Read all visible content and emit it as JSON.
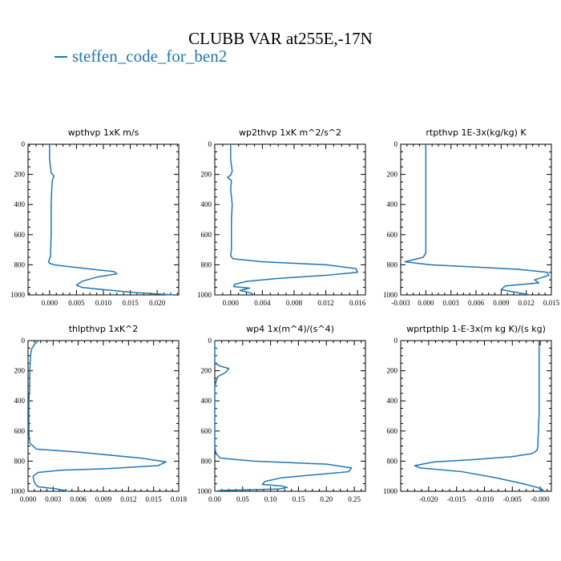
{
  "figure": {
    "title": "CLUBB VAR at255E,-17N",
    "legend": [
      {
        "name": "steffen_code_for_ben2",
        "color": "#1f77b4"
      }
    ]
  },
  "chart_data": [
    {
      "type": "line",
      "title": "wpthvp   1xK m/s",
      "xlim": [
        -0.004,
        0.024
      ],
      "ylim": [
        1000,
        0
      ],
      "xticks": [
        0.0,
        0.005,
        0.01,
        0.015,
        0.02
      ],
      "xtick_labels": [
        "0.000",
        "0.005",
        "0.010",
        "0.015",
        "0.020"
      ],
      "yticks": [
        0,
        200,
        400,
        600,
        800,
        1000
      ],
      "ytick_labels": [
        "0",
        "200",
        "400",
        "600",
        "800",
        "1000"
      ],
      "series": [
        {
          "color": "#1f77b4",
          "x": [
            0.0,
            0.0,
            0.0002,
            0.0003,
            0.0008,
            0.0005,
            0.0004,
            0.0003,
            0.0003,
            0.0003,
            0.0002,
            0.0002,
            -0.0002,
            0.0,
            0.0008,
            0.003,
            0.008,
            0.012,
            0.0125,
            0.009,
            0.006,
            0.005,
            0.006,
            0.01,
            0.016,
            0.023
          ],
          "y": [
            0,
            100,
            160,
            190,
            210,
            240,
            300,
            400,
            500,
            600,
            700,
            740,
            780,
            790,
            800,
            810,
            830,
            845,
            860,
            880,
            910,
            935,
            950,
            965,
            985,
            1000
          ]
        }
      ]
    },
    {
      "type": "line",
      "title": "wp2thvp   1xK m^2/s^2",
      "xlim": [
        -0.002,
        0.017
      ],
      "ylim": [
        1000,
        0
      ],
      "xticks": [
        0.0,
        0.004,
        0.008,
        0.012,
        0.016
      ],
      "xtick_labels": [
        "0.000",
        "0.004",
        "0.008",
        "0.012",
        "0.016"
      ],
      "yticks": [
        0,
        200,
        400,
        600,
        800,
        1000
      ],
      "ytick_labels": [
        "0",
        "200",
        "400",
        "600",
        "800",
        "1000"
      ],
      "series": [
        {
          "color": "#1f77b4",
          "x": [
            0.0,
            0.0,
            0.0002,
            0.0,
            -0.0004,
            0.0001,
            0.0,
            0.0002,
            0.0001,
            0.0001,
            0.0001,
            0.0,
            0.0003,
            0.004,
            0.012,
            0.0158,
            0.016,
            0.012,
            0.006,
            0.002,
            0.0005,
            0.0004,
            0.0024,
            0.0012,
            0.0024,
            0.003
          ],
          "y": [
            0,
            100,
            180,
            205,
            220,
            240,
            300,
            400,
            500,
            600,
            700,
            740,
            760,
            780,
            800,
            825,
            850,
            870,
            890,
            910,
            930,
            945,
            955,
            970,
            985,
            1000
          ]
        }
      ]
    },
    {
      "type": "line",
      "title": "rtpthvp   1E-3x(kg/kg) K",
      "xlim": [
        -0.003,
        0.015
      ],
      "ylim": [
        1000,
        0
      ],
      "xticks": [
        -0.003,
        0.0,
        0.003,
        0.006,
        0.009,
        0.012,
        0.015
      ],
      "xtick_labels": [
        "-0.003",
        "0.000",
        "0.003",
        "0.006",
        "0.009",
        "0.012",
        "0.015"
      ],
      "yticks": [
        0,
        200,
        400,
        600,
        800,
        1000
      ],
      "ytick_labels": [
        "0",
        "200",
        "400",
        "600",
        "800",
        "1000"
      ],
      "series": [
        {
          "color": "#1f77b4",
          "x": [
            0.0,
            0.0,
            0.0,
            0.0,
            0.0,
            0.0,
            -0.0003,
            -0.0025,
            0.0005,
            0.006,
            0.011,
            0.0145,
            0.0147,
            0.013,
            0.0135,
            0.0095,
            0.009,
            0.0125
          ],
          "y": [
            0,
            200,
            400,
            600,
            700,
            720,
            750,
            780,
            800,
            815,
            830,
            850,
            870,
            900,
            920,
            940,
            965,
            1000
          ]
        }
      ]
    },
    {
      "type": "line",
      "title": "thlpthvp   1xK^2",
      "xlim": [
        0.0,
        0.018
      ],
      "ylim": [
        1000,
        0
      ],
      "xticks": [
        0.0,
        0.003,
        0.006,
        0.009,
        0.012,
        0.015,
        0.018
      ],
      "xtick_labels": [
        "0.000",
        "0.003",
        "0.006",
        "0.009",
        "0.012",
        "0.015",
        "0.018"
      ],
      "yticks": [
        0,
        200,
        400,
        600,
        800,
        1000
      ],
      "ytick_labels": [
        "0",
        "200",
        "400",
        "600",
        "800",
        "1000"
      ],
      "series": [
        {
          "color": "#1f77b4",
          "x": [
            0.0012,
            0.0007,
            0.0004,
            0.0003,
            0.0002,
            0.0002,
            0.0001,
            0.0001,
            0.0001,
            0.0002,
            0.001,
            0.006,
            0.0135,
            0.0165,
            0.0155,
            0.0095,
            0.004,
            0.0012,
            0.0006,
            0.0007,
            0.0009,
            0.0012,
            0.0035,
            0.0048
          ],
          "y": [
            0,
            30,
            60,
            100,
            200,
            300,
            400,
            500,
            600,
            680,
            720,
            740,
            780,
            805,
            830,
            850,
            860,
            875,
            900,
            930,
            955,
            970,
            985,
            1000
          ]
        }
      ]
    },
    {
      "type": "line",
      "title": "wp4   1x(m^4)/(s^4)",
      "xlim": [
        0.0,
        0.27
      ],
      "ylim": [
        1000,
        0
      ],
      "xticks": [
        0.0,
        0.05,
        0.1,
        0.15,
        0.2,
        0.25
      ],
      "xtick_labels": [
        "0.00",
        "0.05",
        "0.10",
        "0.15",
        "0.20",
        "0.25"
      ],
      "yticks": [
        0,
        200,
        400,
        600,
        800,
        1000
      ],
      "ytick_labels": [
        "0",
        "200",
        "400",
        "600",
        "800",
        "1000"
      ],
      "series": [
        {
          "color": "#1f77b4",
          "x": [
            0.0,
            0.0,
            0.0,
            0.01,
            0.025,
            0.02,
            0.005,
            0.0,
            0.0,
            0.0,
            0.0,
            0.0,
            0.002,
            0.01,
            0.07,
            0.2,
            0.245,
            0.24,
            0.18,
            0.12,
            0.09,
            0.085,
            0.12,
            0.13,
            0.115,
            0.06,
            0.01,
            0.0
          ],
          "y": [
            0,
            100,
            150,
            170,
            185,
            210,
            240,
            300,
            400,
            500,
            600,
            700,
            750,
            780,
            800,
            820,
            845,
            870,
            890,
            910,
            935,
            955,
            965,
            975,
            985,
            990,
            995,
            1000
          ]
        }
      ]
    },
    {
      "type": "line",
      "title": "wprtpthlp   1-E-3x(m kg K)/(s kg)",
      "xlim": [
        -0.025,
        0.002
      ],
      "ylim": [
        1000,
        0
      ],
      "xticks": [
        -0.02,
        -0.015,
        -0.01,
        -0.005,
        0.0
      ],
      "xtick_labels": [
        "-0.020",
        "-0.015",
        "-0.010",
        "-0.005",
        "-0.000"
      ],
      "yticks": [
        0,
        200,
        400,
        600,
        800,
        1000
      ],
      "ytick_labels": [
        "0",
        "200",
        "400",
        "600",
        "800",
        "1000"
      ],
      "series": [
        {
          "color": "#1f77b4",
          "x": [
            -0.0002,
            -0.0002,
            -0.0002,
            -0.0002,
            -0.0003,
            -0.0003,
            -0.0004,
            -0.0004,
            -0.0006,
            -0.0015,
            -0.005,
            -0.012,
            -0.019,
            -0.0225,
            -0.0215,
            -0.014,
            -0.008,
            -0.003,
            -0.0005,
            0.0005,
            0.0
          ],
          "y": [
            0,
            200,
            400,
            500,
            550,
            600,
            650,
            700,
            730,
            750,
            770,
            790,
            805,
            830,
            845,
            870,
            910,
            950,
            975,
            990,
            1000
          ]
        }
      ]
    }
  ]
}
